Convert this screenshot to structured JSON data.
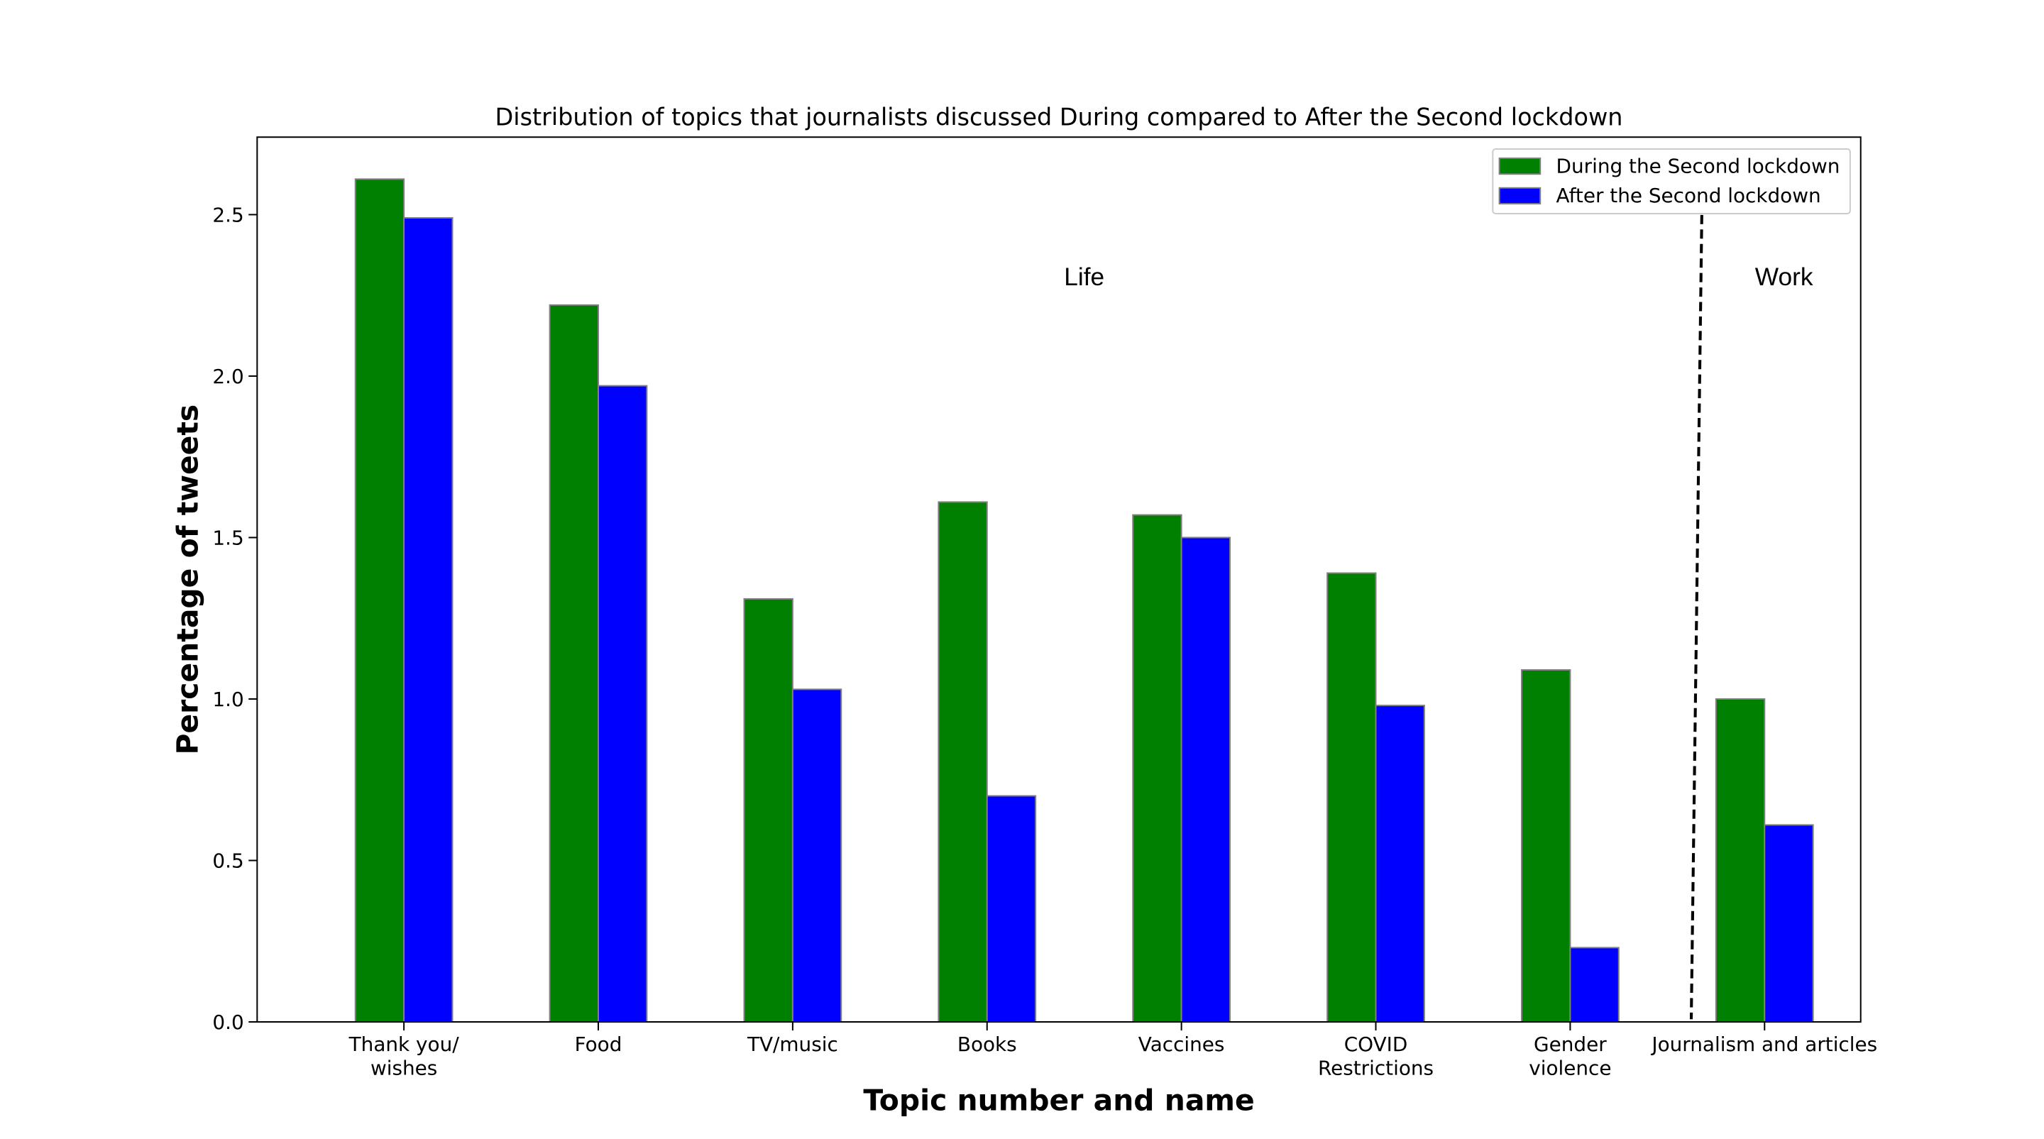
{
  "chart_data": {
    "type": "bar",
    "title": "Distribution of topics that journalists discussed During compared to After the Second lockdown",
    "xlabel": "Topic number and name",
    "ylabel": "Percentage of tweets",
    "categories": [
      [
        "Thank you/",
        "wishes"
      ],
      [
        "Food"
      ],
      [
        "TV/music"
      ],
      [
        "Books"
      ],
      [
        "Vaccines"
      ],
      [
        "COVID",
        "Restrictions"
      ],
      [
        "Gender",
        "violence"
      ],
      [
        "Journalism and articles"
      ]
    ],
    "series": [
      {
        "name": "During the Second lockdown",
        "color": "#008000",
        "values": [
          2.61,
          2.22,
          1.31,
          1.61,
          1.57,
          1.39,
          1.09,
          1.0
        ]
      },
      {
        "name": "After the Second lockdown",
        "color": "#0000ff",
        "values": [
          2.49,
          1.97,
          1.03,
          0.7,
          1.5,
          0.98,
          0.23,
          0.61
        ]
      }
    ],
    "ylim": [
      0,
      2.74
    ],
    "yticks": [
      0.0,
      0.5,
      1.0,
      1.5,
      2.0,
      2.5
    ],
    "ytick_labels": [
      "0.0",
      "0.5",
      "1.0",
      "1.5",
      "2.0",
      "2.5"
    ],
    "grid": false,
    "legend_position": "top-right",
    "annotations": [
      {
        "text": "Life",
        "x_category": 3.5,
        "y": 2.31
      },
      {
        "text": "Work",
        "x_category": 7.1,
        "y": 2.31
      }
    ],
    "divider": {
      "style": "dashed",
      "x_category": 6.65
    },
    "bar_edge_color": "#808080"
  }
}
